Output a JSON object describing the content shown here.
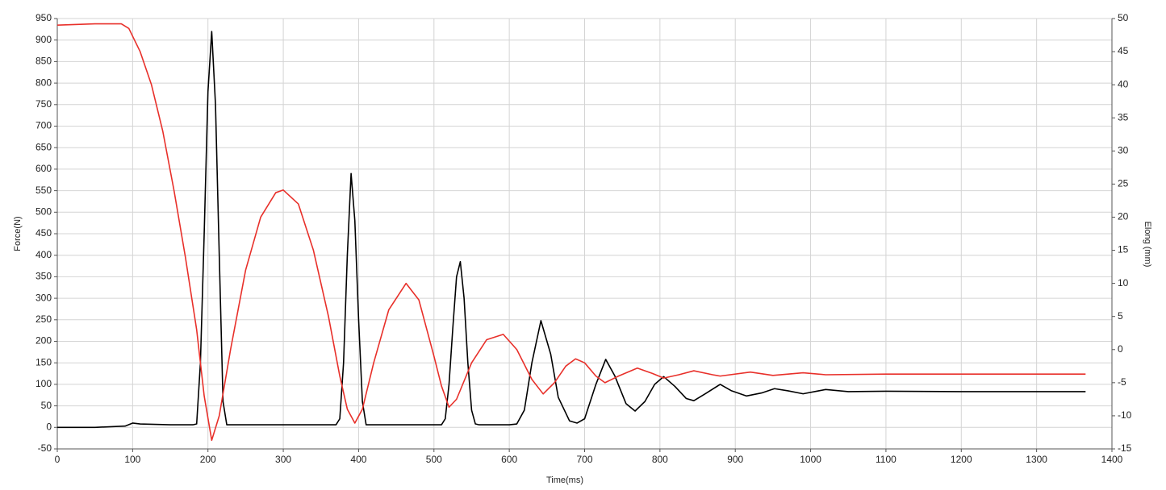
{
  "chart_data": {
    "type": "line",
    "x_label": "Time(ms)",
    "y_label": "Force(N)",
    "y2_label": "Elong (mm)",
    "xlim": [
      0,
      1400
    ],
    "xticks": [
      0,
      100,
      200,
      300,
      400,
      500,
      600,
      700,
      800,
      900,
      1000,
      1100,
      1200,
      1300,
      1400
    ],
    "ylim": [
      -50,
      950
    ],
    "yticks": [
      -50,
      0,
      50,
      100,
      150,
      200,
      250,
      300,
      350,
      400,
      450,
      500,
      550,
      600,
      650,
      700,
      750,
      800,
      850,
      900,
      950
    ],
    "y2lim": [
      -15,
      50
    ],
    "y2ticks": [
      -15,
      -10,
      -5,
      0,
      5,
      10,
      15,
      20,
      25,
      30,
      35,
      40,
      45,
      50
    ],
    "grid": true,
    "series": [
      {
        "color": "#000000",
        "x": [
          0,
          50,
          90,
          100,
          110,
          150,
          180,
          185,
          190,
          195,
          200,
          205,
          210,
          215,
          220,
          225,
          300,
          370,
          375,
          380,
          385,
          390,
          395,
          400,
          405,
          410,
          450,
          510,
          515,
          520,
          525,
          530,
          535,
          540,
          545,
          550,
          555,
          560,
          600,
          610,
          620,
          630,
          642,
          655,
          665,
          680,
          690,
          700,
          715,
          728,
          740,
          755,
          767,
          780,
          793,
          805,
          820,
          835,
          845,
          860,
          880,
          895,
          915,
          935,
          952,
          970,
          990,
          1020,
          1050,
          1100,
          1200,
          1300,
          1365
        ],
        "values": [
          0,
          0,
          3,
          10,
          8,
          6,
          6,
          8,
          150,
          450,
          780,
          920,
          750,
          400,
          60,
          6,
          6,
          6,
          20,
          150,
          400,
          590,
          480,
          250,
          60,
          6,
          6,
          6,
          20,
          100,
          230,
          350,
          385,
          300,
          150,
          40,
          8,
          6,
          6,
          8,
          40,
          150,
          248,
          170,
          70,
          15,
          10,
          20,
          100,
          158,
          120,
          55,
          38,
          60,
          100,
          118,
          95,
          67,
          62,
          78,
          100,
          85,
          73,
          80,
          90,
          85,
          78,
          88,
          83,
          84,
          83,
          83,
          83
        ]
      },
      {
        "color": "#e8302a",
        "axis": "y2",
        "x": [
          0,
          50,
          85,
          95,
          110,
          125,
          140,
          155,
          170,
          185,
          195,
          205,
          215,
          230,
          250,
          270,
          290,
          300,
          320,
          340,
          360,
          375,
          385,
          395,
          405,
          420,
          440,
          463,
          480,
          500,
          510,
          520,
          530,
          550,
          570,
          592,
          610,
          630,
          645,
          660,
          675,
          688,
          700,
          715,
          727,
          745,
          770,
          790,
          805,
          825,
          845,
          870,
          880,
          920,
          950,
          990,
          1020,
          1100,
          1200,
          1300,
          1365
        ],
        "values": [
          49,
          49.2,
          49.2,
          48.5,
          45,
          40,
          33,
          24,
          14,
          3,
          -7,
          -13.7,
          -10,
          0,
          12,
          20,
          23.7,
          24.1,
          22,
          15,
          5,
          -4,
          -9,
          -11.1,
          -9,
          -2,
          6,
          10,
          7.5,
          -1,
          -5.5,
          -8.7,
          -7.5,
          -2,
          1.5,
          2.3,
          0,
          -4.5,
          -6.7,
          -5,
          -2.5,
          -1.4,
          -2,
          -4,
          -5,
          -4,
          -2.8,
          -3.6,
          -4.3,
          -3.8,
          -3.2,
          -3.8,
          -4,
          -3.4,
          -3.9,
          -3.5,
          -3.8,
          -3.7,
          -3.7,
          -3.7,
          -3.7
        ]
      }
    ]
  }
}
